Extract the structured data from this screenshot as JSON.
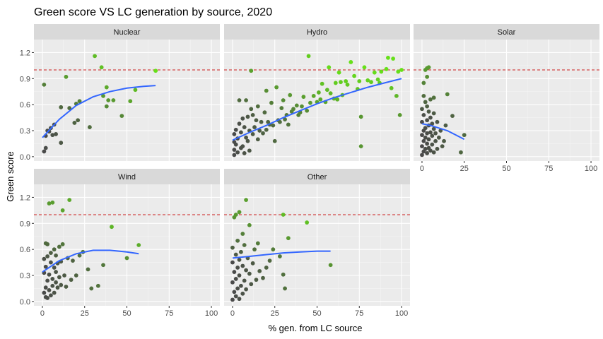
{
  "chart_data": {
    "type": "scatter",
    "title": "Green score VS LC generation by source, 2020",
    "xlabel": "% gen. from LC source",
    "ylabel": "Green score",
    "xlim": [
      -5,
      105
    ],
    "ylim": [
      -0.05,
      1.35
    ],
    "x_ticks": [
      "0",
      "25",
      "50",
      "75",
      "100"
    ],
    "y_ticks": [
      "0.0",
      "0.3",
      "0.6",
      "0.9",
      "1.2"
    ],
    "x_tick_values": [
      0,
      25,
      50,
      75,
      100
    ],
    "y_tick_values": [
      0,
      0.3,
      0.6,
      0.9,
      1.2
    ],
    "reference_line_y": 1.0,
    "grid": true,
    "legend": "none",
    "colors": {
      "point_low": "#4a4a4a",
      "point_high": "#66e019",
      "trend": "#3366ff",
      "reference": "#cc1f1f",
      "panel": "#ebebeb",
      "strip": "#d9d9d9"
    },
    "facets": [
      {
        "name": "Nuclear",
        "points": [
          [
            1,
            0.06
          ],
          [
            1,
            0.83
          ],
          [
            2,
            0.1
          ],
          [
            2,
            0.24
          ],
          [
            3,
            0.3
          ],
          [
            4,
            0.29
          ],
          [
            5,
            0.33
          ],
          [
            6,
            0.25
          ],
          [
            7,
            0.37
          ],
          [
            8,
            0.26
          ],
          [
            11,
            0.57
          ],
          [
            11,
            0.16
          ],
          [
            14,
            0.92
          ],
          [
            16,
            0.56
          ],
          [
            19,
            0.39
          ],
          [
            20,
            0.61
          ],
          [
            21,
            0.42
          ],
          [
            22,
            0.64
          ],
          [
            28,
            0.34
          ],
          [
            31,
            1.16
          ],
          [
            35,
            1.03
          ],
          [
            36,
            0.7
          ],
          [
            38,
            0.58
          ],
          [
            38,
            0.8
          ],
          [
            39,
            0.65
          ],
          [
            42,
            0.65
          ],
          [
            47,
            0.47
          ],
          [
            52,
            0.64
          ],
          [
            55,
            0.77
          ],
          [
            67,
            0.99
          ]
        ],
        "trend": [
          [
            0,
            0.22
          ],
          [
            10,
            0.43
          ],
          [
            20,
            0.59
          ],
          [
            30,
            0.69
          ],
          [
            40,
            0.75
          ],
          [
            50,
            0.79
          ],
          [
            60,
            0.81
          ],
          [
            67,
            0.82
          ]
        ]
      },
      {
        "name": "Hydro",
        "points": [
          [
            1,
            0.02
          ],
          [
            1,
            0.08
          ],
          [
            1,
            0.17
          ],
          [
            1,
            0.26
          ],
          [
            2,
            0.14
          ],
          [
            2,
            0.31
          ],
          [
            3,
            0.05
          ],
          [
            3,
            0.21
          ],
          [
            4,
            0.38
          ],
          [
            4,
            0.65
          ],
          [
            5,
            0.1
          ],
          [
            5,
            0.28
          ],
          [
            6,
            0.12
          ],
          [
            6,
            0.44
          ],
          [
            7,
            0.04
          ],
          [
            7,
            0.34
          ],
          [
            8,
            0.22
          ],
          [
            8,
            0.65
          ],
          [
            9,
            0.18
          ],
          [
            9,
            0.46
          ],
          [
            10,
            0.07
          ],
          [
            10,
            0.3
          ],
          [
            11,
            0.55
          ],
          [
            11,
            0.99
          ],
          [
            12,
            0.26
          ],
          [
            12,
            0.48
          ],
          [
            13,
            0.34
          ],
          [
            14,
            0.42
          ],
          [
            15,
            0.2
          ],
          [
            15,
            0.58
          ],
          [
            16,
            0.3
          ],
          [
            17,
            0.4
          ],
          [
            18,
            0.27
          ],
          [
            19,
            0.51
          ],
          [
            20,
            0.31
          ],
          [
            20,
            0.76
          ],
          [
            21,
            0.4
          ],
          [
            22,
            0.37
          ],
          [
            23,
            0.62
          ],
          [
            24,
            0.36
          ],
          [
            25,
            0.18
          ],
          [
            26,
            0.8
          ],
          [
            27,
            0.42
          ],
          [
            28,
            0.4
          ],
          [
            29,
            0.56
          ],
          [
            30,
            0.65
          ],
          [
            31,
            0.43
          ],
          [
            32,
            0.48
          ],
          [
            33,
            0.37
          ],
          [
            34,
            0.71
          ],
          [
            35,
            0.52
          ],
          [
            36,
            0.55
          ],
          [
            38,
            0.59
          ],
          [
            39,
            0.48
          ],
          [
            40,
            0.51
          ],
          [
            41,
            0.58
          ],
          [
            42,
            0.69
          ],
          [
            44,
            0.53
          ],
          [
            45,
            1.16
          ],
          [
            46,
            0.62
          ],
          [
            48,
            0.7
          ],
          [
            50,
            0.63
          ],
          [
            51,
            0.74
          ],
          [
            52,
            0.66
          ],
          [
            53,
            0.84
          ],
          [
            55,
            0.63
          ],
          [
            56,
            0.77
          ],
          [
            57,
            1.03
          ],
          [
            58,
            0.73
          ],
          [
            60,
            0.67
          ],
          [
            61,
            0.85
          ],
          [
            62,
            0.66
          ],
          [
            63,
            0.97
          ],
          [
            64,
            0.86
          ],
          [
            65,
            0.71
          ],
          [
            67,
            0.87
          ],
          [
            68,
            0.83
          ],
          [
            70,
            1.09
          ],
          [
            72,
            0.93
          ],
          [
            74,
            0.78
          ],
          [
            75,
            0.87
          ],
          [
            76,
            0.46
          ],
          [
            76,
            0.12
          ],
          [
            78,
            1.03
          ],
          [
            80,
            0.88
          ],
          [
            82,
            0.86
          ],
          [
            84,
            0.97
          ],
          [
            86,
            0.89
          ],
          [
            87,
            0.85
          ],
          [
            88,
            0.98
          ],
          [
            91,
            1.01
          ],
          [
            92,
            1.14
          ],
          [
            94,
            0.79
          ],
          [
            95,
            1.13
          ],
          [
            97,
            0.7
          ],
          [
            98,
            0.98
          ],
          [
            99,
            0.48
          ],
          [
            100,
            1.0
          ]
        ],
        "trend": [
          [
            0,
            0.19
          ],
          [
            10,
            0.28
          ],
          [
            20,
            0.36
          ],
          [
            30,
            0.45
          ],
          [
            40,
            0.53
          ],
          [
            50,
            0.61
          ],
          [
            60,
            0.68
          ],
          [
            70,
            0.74
          ],
          [
            80,
            0.8
          ],
          [
            90,
            0.85
          ],
          [
            100,
            0.9
          ]
        ]
      },
      {
        "name": "Solar",
        "points": [
          [
            0,
            0.02
          ],
          [
            0,
            0.12
          ],
          [
            0,
            0.25
          ],
          [
            0,
            0.4
          ],
          [
            0,
            0.55
          ],
          [
            1,
            0.06
          ],
          [
            1,
            0.18
          ],
          [
            1,
            0.3
          ],
          [
            1,
            0.48
          ],
          [
            1,
            0.7
          ],
          [
            1,
            0.85
          ],
          [
            2,
            0.09
          ],
          [
            2,
            0.22
          ],
          [
            2,
            0.33
          ],
          [
            2,
            0.63
          ],
          [
            2,
            1.0
          ],
          [
            3,
            0.04
          ],
          [
            3,
            0.15
          ],
          [
            3,
            0.27
          ],
          [
            3,
            0.42
          ],
          [
            3,
            0.58
          ],
          [
            3,
            0.92
          ],
          [
            3,
            1.02
          ],
          [
            4,
            0.1
          ],
          [
            4,
            0.2
          ],
          [
            4,
            0.36
          ],
          [
            4,
            0.52
          ],
          [
            4,
            1.03
          ],
          [
            5,
            0.07
          ],
          [
            5,
            0.28
          ],
          [
            5,
            0.45
          ],
          [
            5,
            0.66
          ],
          [
            6,
            0.14
          ],
          [
            6,
            0.24
          ],
          [
            6,
            0.38
          ],
          [
            7,
            0.05
          ],
          [
            7,
            0.32
          ],
          [
            7,
            0.5
          ],
          [
            7,
            0.68
          ],
          [
            8,
            0.18
          ],
          [
            8,
            0.27
          ],
          [
            9,
            0.09
          ],
          [
            9,
            0.4
          ],
          [
            10,
            0.22
          ],
          [
            11,
            0.3
          ],
          [
            12,
            0.12
          ],
          [
            13,
            0.18
          ],
          [
            14,
            0.36
          ],
          [
            15,
            0.72
          ],
          [
            18,
            0.47
          ],
          [
            23,
            0.05
          ],
          [
            25,
            0.25
          ]
        ],
        "trend": [
          [
            0,
            0.38
          ],
          [
            5,
            0.36
          ],
          [
            10,
            0.33
          ],
          [
            15,
            0.3
          ],
          [
            20,
            0.25
          ],
          [
            25,
            0.2
          ]
        ]
      },
      {
        "name": "Wind",
        "points": [
          [
            1,
            0.1
          ],
          [
            1,
            0.33
          ],
          [
            1,
            0.49
          ],
          [
            2,
            0.05
          ],
          [
            2,
            0.16
          ],
          [
            2,
            0.4
          ],
          [
            2,
            0.67
          ],
          [
            3,
            0.04
          ],
          [
            3,
            0.24
          ],
          [
            3,
            0.52
          ],
          [
            3,
            0.66
          ],
          [
            4,
            0.13
          ],
          [
            4,
            0.31
          ],
          [
            4,
            1.13
          ],
          [
            5,
            0.07
          ],
          [
            5,
            0.45
          ],
          [
            5,
            0.56
          ],
          [
            6,
            0.18
          ],
          [
            6,
            0.26
          ],
          [
            6,
            1.14
          ],
          [
            7,
            0.1
          ],
          [
            7,
            0.39
          ],
          [
            7,
            0.6
          ],
          [
            8,
            0.22
          ],
          [
            8,
            0.34
          ],
          [
            8,
            0.53
          ],
          [
            9,
            0.16
          ],
          [
            9,
            0.44
          ],
          [
            10,
            0.28
          ],
          [
            10,
            0.63
          ],
          [
            11,
            0.46
          ],
          [
            11,
            0.19
          ],
          [
            12,
            1.05
          ],
          [
            12,
            0.66
          ],
          [
            13,
            0.3
          ],
          [
            14,
            0.17
          ],
          [
            15,
            0.5
          ],
          [
            16,
            1.17
          ],
          [
            17,
            0.25
          ],
          [
            18,
            0.47
          ],
          [
            20,
            0.3
          ],
          [
            22,
            0.53
          ],
          [
            24,
            0.57
          ],
          [
            27,
            0.37
          ],
          [
            29,
            0.15
          ],
          [
            33,
            0.18
          ],
          [
            36,
            0.42
          ],
          [
            41,
            0.86
          ],
          [
            50,
            0.5
          ],
          [
            57,
            0.65
          ]
        ],
        "trend": [
          [
            0,
            0.34
          ],
          [
            10,
            0.47
          ],
          [
            20,
            0.55
          ],
          [
            30,
            0.59
          ],
          [
            40,
            0.59
          ],
          [
            50,
            0.57
          ],
          [
            57,
            0.55
          ]
        ]
      },
      {
        "name": "Other",
        "points": [
          [
            0,
            0.02
          ],
          [
            0,
            0.22
          ],
          [
            0,
            0.45
          ],
          [
            0,
            0.62
          ],
          [
            1,
            0.11
          ],
          [
            1,
            0.34
          ],
          [
            1,
            0.97
          ],
          [
            2,
            0.06
          ],
          [
            2,
            0.26
          ],
          [
            2,
            0.54
          ],
          [
            2,
            1.0
          ],
          [
            3,
            0.15
          ],
          [
            3,
            0.39
          ],
          [
            3,
            0.7
          ],
          [
            4,
            0.03
          ],
          [
            4,
            0.3
          ],
          [
            4,
            0.48
          ],
          [
            4,
            1.03
          ],
          [
            5,
            0.18
          ],
          [
            5,
            0.57
          ],
          [
            6,
            0.09
          ],
          [
            6,
            0.41
          ],
          [
            6,
            0.78
          ],
          [
            7,
            0.24
          ],
          [
            7,
            0.65
          ],
          [
            8,
            0.14
          ],
          [
            8,
            0.36
          ],
          [
            8,
            1.17
          ],
          [
            9,
            0.5
          ],
          [
            10,
            0.32
          ],
          [
            10,
            0.88
          ],
          [
            11,
            0.2
          ],
          [
            12,
            0.44
          ],
          [
            13,
            0.6
          ],
          [
            14,
            0.25
          ],
          [
            15,
            0.67
          ],
          [
            16,
            0.35
          ],
          [
            18,
            0.27
          ],
          [
            20,
            0.39
          ],
          [
            22,
            0.47
          ],
          [
            24,
            0.6
          ],
          [
            28,
            0.52
          ],
          [
            30,
            0.31
          ],
          [
            30,
            1.0
          ],
          [
            31,
            0.15
          ],
          [
            33,
            0.73
          ],
          [
            44,
            0.91
          ],
          [
            58,
            0.42
          ]
        ],
        "trend": [
          [
            0,
            0.5
          ],
          [
            10,
            0.52
          ],
          [
            20,
            0.54
          ],
          [
            30,
            0.56
          ],
          [
            40,
            0.57
          ],
          [
            50,
            0.58
          ],
          [
            58,
            0.58
          ]
        ]
      }
    ]
  }
}
